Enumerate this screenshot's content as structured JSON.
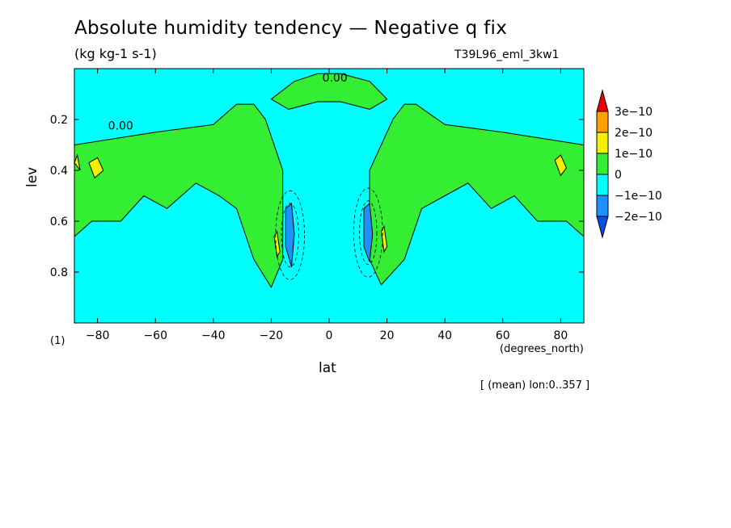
{
  "title": "Absolute humidity tendency — Negative q fix",
  "units": "(kg kg-1 s-1)",
  "run_id": "T39L96_eml_3kw1",
  "footer": "[ (mean) lon:0..357 ]",
  "chart_data": {
    "type": "heatmap",
    "title": "Absolute humidity tendency — Negative q fix",
    "xlabel": "lat",
    "xunit": "(degrees_north)",
    "ylabel": "lev",
    "yunit": "(1)",
    "xlim": [
      -88,
      88
    ],
    "ylim": [
      1.0,
      0.0
    ],
    "x_ticks": [
      {
        "v": -80,
        "label": "−80"
      },
      {
        "v": -60,
        "label": "−60"
      },
      {
        "v": -40,
        "label": "−40"
      },
      {
        "v": -20,
        "label": "−20"
      },
      {
        "v": 0,
        "label": "0"
      },
      {
        "v": 20,
        "label": "20"
      },
      {
        "v": 40,
        "label": "40"
      },
      {
        "v": 60,
        "label": "60"
      },
      {
        "v": 80,
        "label": "80"
      }
    ],
    "y_ticks": [
      {
        "v": 0.2,
        "label": "0.2"
      },
      {
        "v": 0.4,
        "label": "0.4"
      },
      {
        "v": 0.6,
        "label": "0.6"
      },
      {
        "v": 0.8,
        "label": "0.8"
      }
    ],
    "colorbar": {
      "labels": [
        "3e−10",
        "2e−10",
        "1e−10",
        "0",
        "−1e−10",
        "−2e−10"
      ],
      "colors": [
        "#ee0000",
        "#ffa000",
        "#f0f000",
        "#33ee33",
        "#00ffff",
        "#1e90ff",
        "#0050e6"
      ]
    },
    "background_color": "#00ffff",
    "contour_labels": [
      "0.00"
    ],
    "regions": [
      {
        "level": "0 to 1e-10",
        "color": "#33ee33",
        "polygon": [
          [
            -88,
            0.3
          ],
          [
            -60,
            0.25
          ],
          [
            -40,
            0.22
          ],
          [
            -32,
            0.14
          ],
          [
            -26,
            0.14
          ],
          [
            -22,
            0.2
          ],
          [
            -16,
            0.4
          ],
          [
            -16,
            0.75
          ],
          [
            -20,
            0.86
          ],
          [
            -26,
            0.75
          ],
          [
            -32,
            0.55
          ],
          [
            -38,
            0.5
          ],
          [
            -46,
            0.45
          ],
          [
            -56,
            0.55
          ],
          [
            -64,
            0.5
          ],
          [
            -72,
            0.6
          ],
          [
            -82,
            0.6
          ],
          [
            -88,
            0.66
          ]
        ]
      },
      {
        "level": "0 to 1e-10",
        "color": "#33ee33",
        "polygon": [
          [
            88,
            0.3
          ],
          [
            60,
            0.25
          ],
          [
            40,
            0.22
          ],
          [
            30,
            0.14
          ],
          [
            26,
            0.14
          ],
          [
            22,
            0.2
          ],
          [
            14,
            0.4
          ],
          [
            14,
            0.75
          ],
          [
            18,
            0.85
          ],
          [
            26,
            0.75
          ],
          [
            32,
            0.55
          ],
          [
            40,
            0.5
          ],
          [
            48,
            0.45
          ],
          [
            56,
            0.55
          ],
          [
            64,
            0.5
          ],
          [
            72,
            0.6
          ],
          [
            82,
            0.6
          ],
          [
            88,
            0.66
          ]
        ]
      },
      {
        "level": "0 to 1e-10",
        "color": "#33ee33",
        "polygon": [
          [
            -20,
            0.12
          ],
          [
            -12,
            0.05
          ],
          [
            -4,
            0.02
          ],
          [
            4,
            0.02
          ],
          [
            14,
            0.05
          ],
          [
            20,
            0.12
          ],
          [
            14,
            0.16
          ],
          [
            4,
            0.13
          ],
          [
            -4,
            0.13
          ],
          [
            -14,
            0.16
          ]
        ]
      },
      {
        "level": "1e-10 to 2e-10",
        "color": "#f0f000",
        "polygon": [
          [
            -83,
            0.37
          ],
          [
            -80,
            0.35
          ],
          [
            -78,
            0.4
          ],
          [
            -81,
            0.43
          ]
        ]
      },
      {
        "level": "1e-10 to 2e-10",
        "color": "#f0f000",
        "polygon": [
          [
            78,
            0.36
          ],
          [
            80,
            0.34
          ],
          [
            82,
            0.39
          ],
          [
            80,
            0.42
          ]
        ]
      },
      {
        "level": "1e-10 to 2e-10",
        "color": "#f0f000",
        "polygon": [
          [
            -88,
            0.37
          ],
          [
            -87,
            0.34
          ],
          [
            -86,
            0.4
          ]
        ]
      },
      {
        "level": "1e-10 to 2e-10",
        "color": "#f0f000",
        "polygon": [
          [
            -19,
            0.66
          ],
          [
            -18,
            0.64
          ],
          [
            -17,
            0.72
          ],
          [
            -18,
            0.74
          ]
        ]
      },
      {
        "level": "1e-10 to 2e-10",
        "color": "#f0f000",
        "polygon": [
          [
            18,
            0.64
          ],
          [
            19,
            0.62
          ],
          [
            20,
            0.7
          ],
          [
            19,
            0.72
          ]
        ]
      },
      {
        "level": "-1e-10 to -2e-10",
        "color": "#1e90ff",
        "polygon": [
          [
            -15,
            0.55
          ],
          [
            -13,
            0.53
          ],
          [
            -12,
            0.65
          ],
          [
            -13,
            0.78
          ],
          [
            -15,
            0.7
          ]
        ]
      },
      {
        "level": "-1e-10 to -2e-10",
        "color": "#1e90ff",
        "polygon": [
          [
            12,
            0.55
          ],
          [
            14,
            0.53
          ],
          [
            15,
            0.65
          ],
          [
            14,
            0.76
          ],
          [
            12,
            0.7
          ]
        ]
      }
    ]
  }
}
